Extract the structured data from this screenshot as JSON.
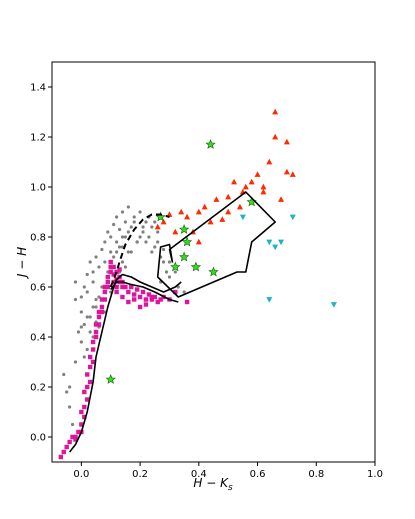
{
  "chart_data": {
    "type": "scatter",
    "xlabel": "H − K",
    "xlabel_sub": "s",
    "ylabel": "J − H",
    "xlim": [
      -0.1,
      1.0
    ],
    "ylim": [
      -0.1,
      1.5
    ],
    "x_ticks": [
      0.0,
      0.2,
      0.4,
      0.6,
      0.8,
      1.0
    ],
    "x_tick_labels": [
      "0.0",
      "0.2",
      "0.4",
      "0.6",
      "0.8",
      "1.0"
    ],
    "y_ticks": [
      0.0,
      0.2,
      0.4,
      0.6,
      0.8,
      1.0,
      1.2,
      1.4
    ],
    "y_tick_labels": [
      "0.0",
      "0.2",
      "0.4",
      "0.6",
      "0.8",
      "1.0",
      "1.2",
      "1.4"
    ],
    "grid": false,
    "legend": "none",
    "colors": {
      "gray": "#808080",
      "magenta": "#e0149b",
      "red": "#ff2a00",
      "cyan": "#1cb3c6",
      "green": "#33dd22",
      "line": "#000000"
    },
    "series": [
      {
        "marker": "dot",
        "color": "#808080",
        "x": [
          -0.05,
          -0.04,
          -0.03,
          -0.02,
          -0.02,
          -0.01,
          0.0,
          0.0,
          0.01,
          0.01,
          0.02,
          0.02,
          0.03,
          0.03,
          0.04,
          0.04,
          0.05,
          0.05,
          0.06,
          0.06,
          0.07,
          0.07,
          0.08,
          0.08,
          0.09,
          0.09,
          0.1,
          0.1,
          0.11,
          0.11,
          0.12,
          0.12,
          0.13,
          0.13,
          0.14,
          0.14,
          0.15,
          0.15,
          0.16,
          0.17,
          0.18,
          0.19,
          0.2,
          0.21,
          0.22,
          0.23,
          0.24,
          0.25,
          0.26,
          0.27,
          0.28,
          0.3,
          0.32,
          -0.06,
          -0.02,
          0.0,
          0.02,
          0.04,
          0.05,
          0.07,
          0.08,
          0.1,
          0.12,
          0.14,
          0.16,
          0.18,
          0.2,
          0.22,
          0.24,
          0.26,
          0.28,
          0.3,
          0.33,
          0.35,
          0.0,
          0.02,
          0.04,
          0.06,
          0.09,
          0.11,
          0.13,
          0.15,
          0.03,
          0.05,
          0.08,
          0.1,
          0.12,
          0.14,
          0.17,
          0.19,
          0.21,
          0.23,
          -0.04,
          0.01,
          0.06,
          0.11,
          0.16,
          0.25,
          0.29,
          0.27
        ],
        "y": [
          0.18,
          0.12,
          0.05,
          0.55,
          0.3,
          0.42,
          0.5,
          0.38,
          0.6,
          0.45,
          0.65,
          0.35,
          0.7,
          0.48,
          0.62,
          0.4,
          0.72,
          0.55,
          0.68,
          0.45,
          0.75,
          0.5,
          0.78,
          0.6,
          0.82,
          0.66,
          0.8,
          0.7,
          0.85,
          0.62,
          0.88,
          0.74,
          0.83,
          0.66,
          0.9,
          0.76,
          0.86,
          0.68,
          0.92,
          0.84,
          0.88,
          0.78,
          0.9,
          0.82,
          0.86,
          0.8,
          0.84,
          0.76,
          0.82,
          0.72,
          0.75,
          0.7,
          0.66,
          0.25,
          0.62,
          0.56,
          0.58,
          0.66,
          0.52,
          0.6,
          0.7,
          0.74,
          0.78,
          0.8,
          0.82,
          0.86,
          0.8,
          0.78,
          0.74,
          0.78,
          0.7,
          0.64,
          0.6,
          0.58,
          0.44,
          0.48,
          0.52,
          0.56,
          0.64,
          0.72,
          0.76,
          0.8,
          0.42,
          0.46,
          0.5,
          0.58,
          0.62,
          0.7,
          0.74,
          0.78,
          0.84,
          0.88,
          0.2,
          0.32,
          0.44,
          0.68,
          0.74,
          0.86,
          0.66,
          0.62
        ]
      },
      {
        "marker": "square",
        "color": "#e0149b",
        "x": [
          -0.07,
          -0.06,
          -0.05,
          -0.04,
          -0.03,
          -0.02,
          -0.01,
          0.0,
          0.0,
          0.01,
          0.01,
          0.02,
          0.02,
          0.03,
          0.03,
          0.04,
          0.04,
          0.05,
          0.05,
          0.06,
          0.06,
          0.07,
          0.07,
          0.08,
          0.08,
          0.09,
          0.09,
          0.1,
          0.1,
          0.11,
          0.11,
          0.12,
          0.12,
          0.13,
          0.13,
          0.14,
          0.14,
          0.15,
          0.16,
          0.17,
          0.18,
          0.19,
          0.2,
          0.21,
          0.22,
          0.23,
          0.24,
          0.25,
          0.26,
          0.27,
          0.28,
          0.3,
          0.32,
          0.36,
          0.1,
          0.11,
          0.12,
          0.13,
          0.09,
          0.08,
          0.07,
          0.06,
          0.05,
          0.04,
          0.03,
          0.02,
          0.01,
          0.0,
          -0.02,
          0.12,
          0.14,
          0.16,
          0.18,
          0.2,
          0.22,
          0.24
        ],
        "y": [
          -0.08,
          -0.06,
          -0.04,
          -0.02,
          0.0,
          -0.01,
          0.02,
          0.05,
          0.1,
          0.12,
          0.18,
          0.2,
          0.25,
          0.28,
          0.32,
          0.35,
          0.38,
          0.42,
          0.45,
          0.48,
          0.5,
          0.52,
          0.55,
          0.58,
          0.6,
          0.62,
          0.64,
          0.66,
          0.68,
          0.62,
          0.65,
          0.6,
          0.63,
          0.62,
          0.64,
          0.6,
          0.62,
          0.6,
          0.58,
          0.6,
          0.57,
          0.59,
          0.56,
          0.58,
          0.55,
          0.57,
          0.55,
          0.56,
          0.54,
          0.55,
          0.56,
          0.55,
          0.58,
          0.54,
          0.7,
          0.68,
          0.66,
          0.67,
          0.6,
          0.55,
          0.5,
          0.45,
          0.4,
          0.3,
          0.22,
          0.15,
          0.08,
          0.02,
          0.0,
          0.58,
          0.56,
          0.54,
          0.55,
          0.52,
          0.53,
          0.56
        ]
      },
      {
        "marker": "triangle-up",
        "color": "#ff2a00",
        "x": [
          0.66,
          0.7,
          0.72,
          0.64,
          0.68,
          0.62,
          0.6,
          0.58,
          0.55,
          0.5,
          0.52,
          0.46,
          0.42,
          0.4,
          0.36,
          0.34,
          0.3,
          0.28,
          0.26,
          0.48,
          0.54,
          0.44,
          0.38,
          0.32,
          0.56,
          0.66,
          0.62,
          0.7,
          0.5,
          0.4
        ],
        "y": [
          1.3,
          1.18,
          1.05,
          1.1,
          0.95,
          1.0,
          1.05,
          1.02,
          0.98,
          0.96,
          1.02,
          0.95,
          0.92,
          0.9,
          0.88,
          0.9,
          0.89,
          0.86,
          0.84,
          0.87,
          0.92,
          0.86,
          0.82,
          0.82,
          1.0,
          1.2,
          0.98,
          1.06,
          0.9,
          0.78
        ]
      },
      {
        "marker": "triangle-down",
        "color": "#1cb3c6",
        "x": [
          0.72,
          0.55,
          0.64,
          0.66,
          0.68,
          0.86,
          0.64
        ],
        "y": [
          0.88,
          0.88,
          0.78,
          0.76,
          0.78,
          0.53,
          0.55
        ]
      },
      {
        "marker": "star",
        "color": "#33dd22",
        "x": [
          0.44,
          0.27,
          0.58,
          0.35,
          0.36,
          0.35,
          0.32,
          0.39,
          0.45,
          0.1
        ],
        "y": [
          1.17,
          0.88,
          0.94,
          0.83,
          0.78,
          0.72,
          0.68,
          0.68,
          0.66,
          0.23
        ]
      }
    ],
    "lines": [
      {
        "style": "solid",
        "closed": false,
        "x": [
          -0.04,
          -0.02,
          0.0,
          0.02,
          0.04,
          0.05,
          0.07,
          0.09,
          0.11,
          0.12,
          0.14,
          0.17,
          0.2,
          0.24,
          0.28,
          0.32,
          0.34
        ],
        "y": [
          -0.06,
          -0.03,
          0.02,
          0.1,
          0.22,
          0.32,
          0.42,
          0.52,
          0.6,
          0.63,
          0.65,
          0.64,
          0.62,
          0.6,
          0.58,
          0.6,
          0.62
        ]
      },
      {
        "style": "dashed",
        "closed": false,
        "x": [
          0.1,
          0.12,
          0.13,
          0.15,
          0.18,
          0.21,
          0.24,
          0.27,
          0.3
        ],
        "y": [
          0.6,
          0.66,
          0.7,
          0.77,
          0.83,
          0.87,
          0.89,
          0.89,
          0.88
        ]
      },
      {
        "style": "solid",
        "closed": false,
        "x": [
          0.1,
          0.12,
          0.14,
          0.17,
          0.21,
          0.25,
          0.3,
          0.33
        ],
        "y": [
          0.59,
          0.62,
          0.62,
          0.61,
          0.6,
          0.58,
          0.55,
          0.54
        ]
      },
      {
        "style": "solid",
        "closed": true,
        "x": [
          0.26,
          0.27,
          0.3,
          0.31,
          0.3,
          0.56,
          0.66,
          0.58,
          0.56,
          0.53,
          0.33,
          0.26
        ],
        "y": [
          0.64,
          0.76,
          0.77,
          0.7,
          0.75,
          0.98,
          0.86,
          0.78,
          0.66,
          0.66,
          0.56,
          0.64
        ]
      }
    ]
  }
}
